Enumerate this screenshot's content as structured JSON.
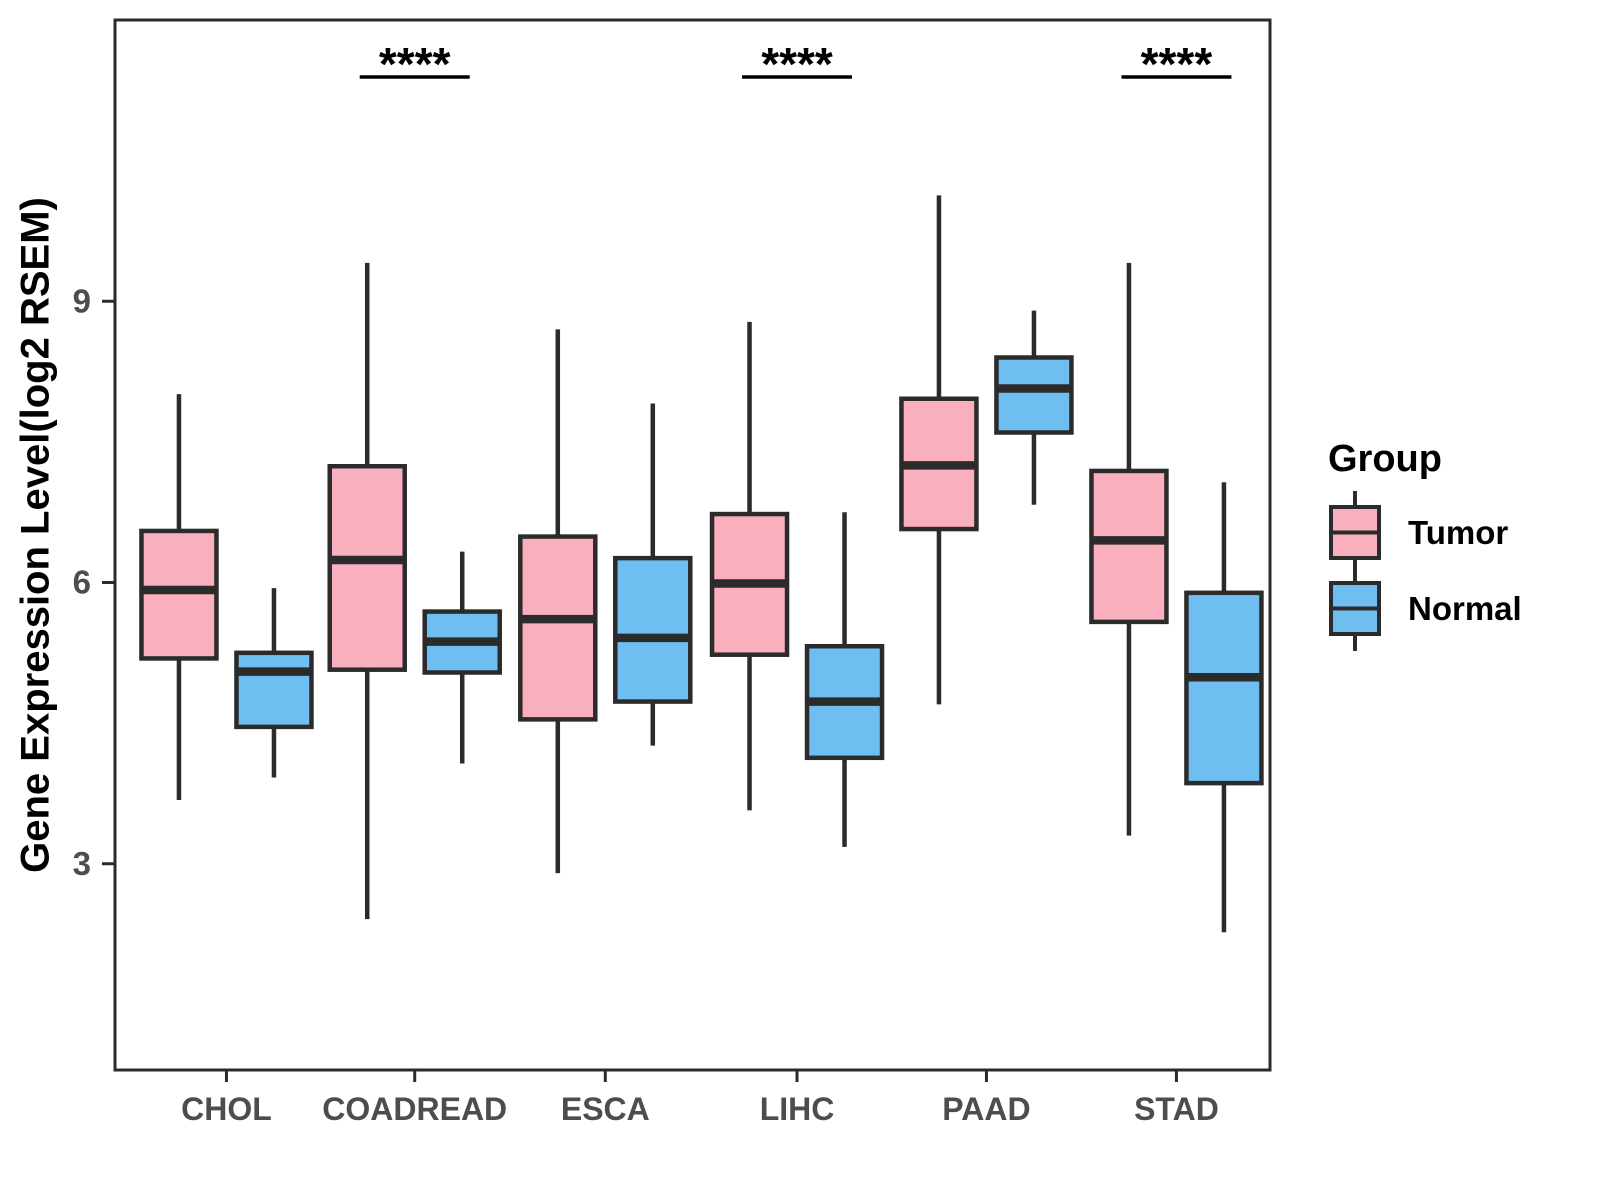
{
  "chart_data": {
    "type": "boxplot",
    "title": "",
    "ylabel": "Gene Expression Level(log2 RSEM)",
    "xlabel": "",
    "categories": [
      "CHOL",
      "COADREAD",
      "ESCA",
      "LIHC",
      "PAAD",
      "STAD"
    ],
    "yticks": [
      3,
      6,
      9
    ],
    "ylim": [
      0.8,
      12.0
    ],
    "grid": false,
    "legend": {
      "title": "Group",
      "position": "right"
    },
    "groups": [
      {
        "name": "Tumor",
        "color": "#FAAFBF"
      },
      {
        "name": "Normal",
        "color": "#6FBEF2"
      }
    ],
    "line_color": "#2B2B2B",
    "tick_label_color": "#4D4D4D",
    "significance": [
      {
        "category": "COADREAD",
        "label": "****"
      },
      {
        "category": "LIHC",
        "label": "****"
      },
      {
        "category": "STAD",
        "label": "****"
      }
    ],
    "boxes": [
      {
        "category": "CHOL",
        "group": "Tumor",
        "whisker_low": 3.68,
        "q1": 5.19,
        "median": 5.92,
        "q3": 6.55,
        "whisker_high": 8.01
      },
      {
        "category": "CHOL",
        "group": "Normal",
        "whisker_low": 3.92,
        "q1": 4.46,
        "median": 5.05,
        "q3": 5.25,
        "whisker_high": 5.94
      },
      {
        "category": "COADREAD",
        "group": "Tumor",
        "whisker_low": 2.41,
        "q1": 5.07,
        "median": 6.24,
        "q3": 7.24,
        "whisker_high": 9.41
      },
      {
        "category": "COADREAD",
        "group": "Normal",
        "whisker_low": 4.07,
        "q1": 5.04,
        "median": 5.37,
        "q3": 5.69,
        "whisker_high": 6.33
      },
      {
        "category": "ESCA",
        "group": "Tumor",
        "whisker_low": 2.9,
        "q1": 4.54,
        "median": 5.61,
        "q3": 6.49,
        "whisker_high": 8.7
      },
      {
        "category": "ESCA",
        "group": "Normal",
        "whisker_low": 4.26,
        "q1": 4.73,
        "median": 5.41,
        "q3": 6.26,
        "whisker_high": 7.91
      },
      {
        "category": "LIHC",
        "group": "Tumor",
        "whisker_low": 3.57,
        "q1": 5.23,
        "median": 5.99,
        "q3": 6.73,
        "whisker_high": 8.78
      },
      {
        "category": "LIHC",
        "group": "Normal",
        "whisker_low": 3.18,
        "q1": 4.13,
        "median": 4.73,
        "q3": 5.32,
        "whisker_high": 6.75
      },
      {
        "category": "PAAD",
        "group": "Tumor",
        "whisker_low": 4.7,
        "q1": 6.57,
        "median": 7.25,
        "q3": 7.96,
        "whisker_high": 10.13
      },
      {
        "category": "PAAD",
        "group": "Normal",
        "whisker_low": 6.83,
        "q1": 7.6,
        "median": 8.07,
        "q3": 8.4,
        "whisker_high": 8.9
      },
      {
        "category": "STAD",
        "group": "Tumor",
        "whisker_low": 3.3,
        "q1": 5.58,
        "median": 6.45,
        "q3": 7.19,
        "whisker_high": 9.41
      },
      {
        "category": "STAD",
        "group": "Normal",
        "whisker_low": 2.27,
        "q1": 3.86,
        "median": 4.99,
        "q3": 5.89,
        "whisker_high": 7.07
      }
    ]
  }
}
